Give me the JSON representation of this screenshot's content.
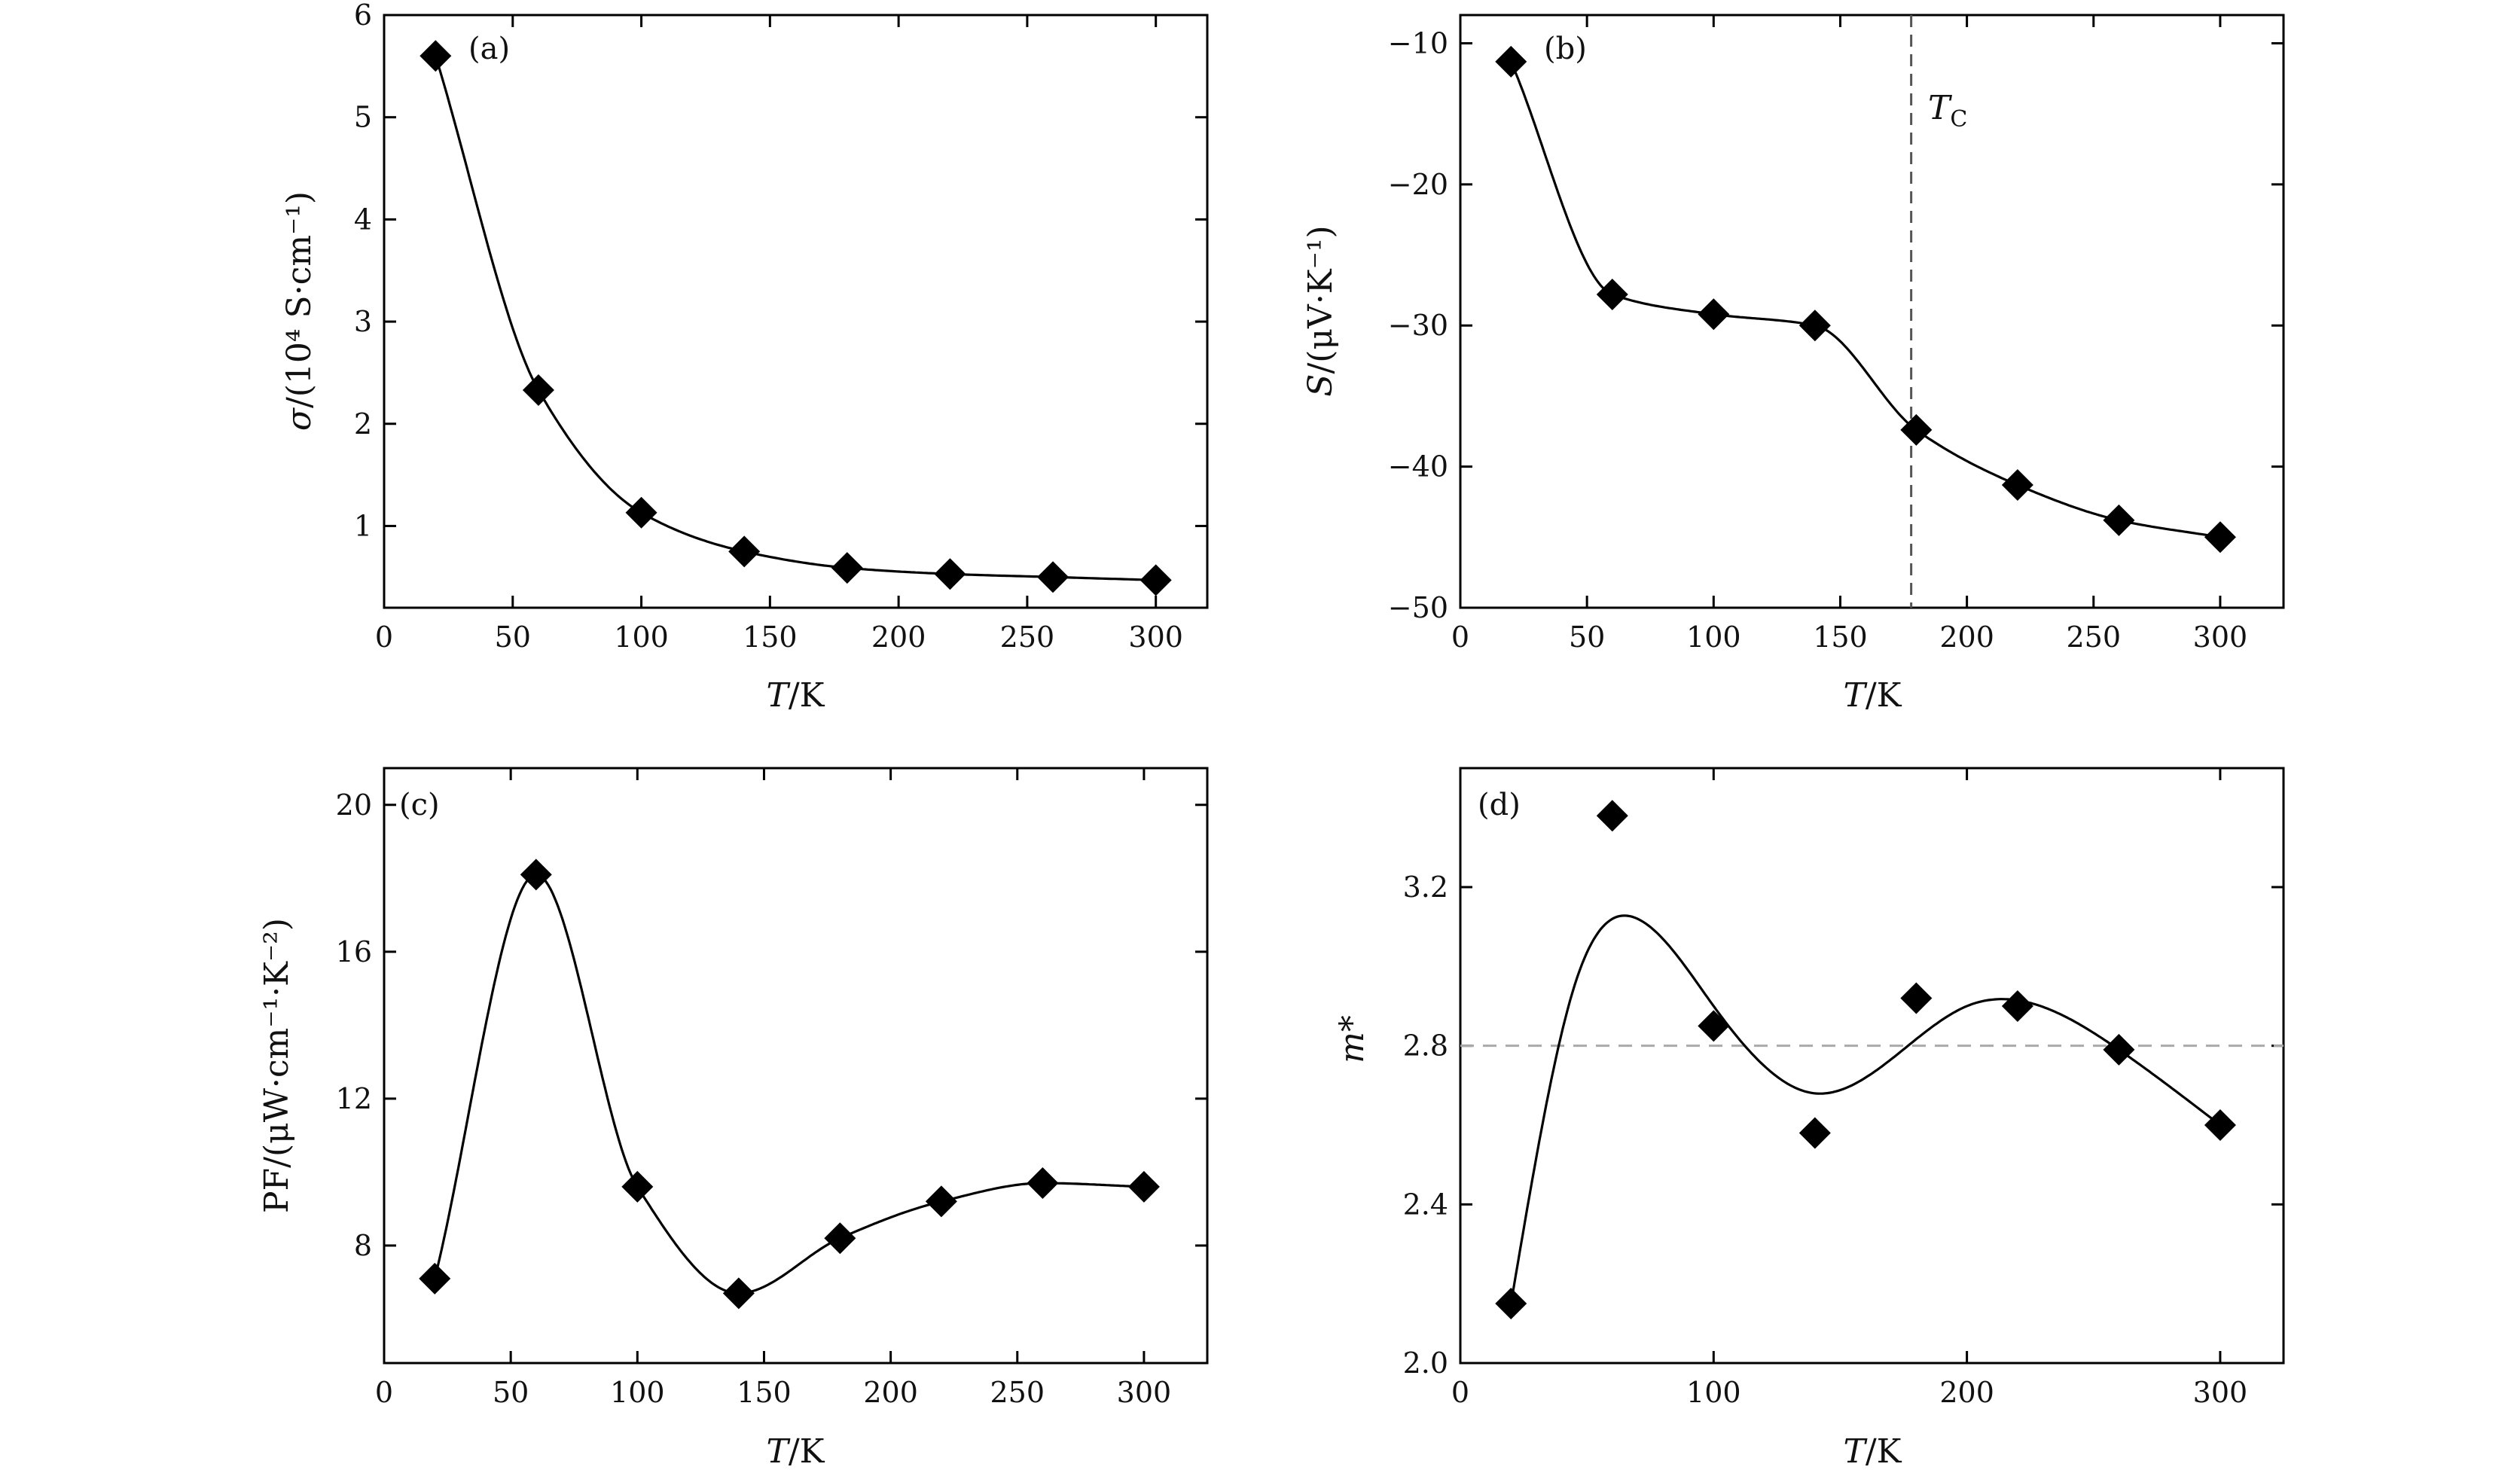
{
  "chart_data": [
    {
      "type": "scatter",
      "panel": "(a)",
      "xlabel_var": "T",
      "xlabel_unit": "/K",
      "ylabel_var": "σ",
      "ylabel_unit": "/(10⁴ S·cm⁻¹)",
      "xlim": [
        0,
        320
      ],
      "ylim": [
        0.2,
        6.0
      ],
      "xticks": [
        0,
        50,
        100,
        150,
        200,
        250,
        300
      ],
      "yticks": [
        1,
        2,
        3,
        4,
        5,
        6
      ],
      "x": [
        20,
        60,
        100,
        140,
        180,
        220,
        260,
        300
      ],
      "y": [
        5.6,
        2.33,
        1.13,
        0.75,
        0.59,
        0.53,
        0.5,
        0.47
      ],
      "fit_curve": true
    },
    {
      "type": "scatter",
      "panel": "(b)",
      "xlabel_var": "T",
      "xlabel_unit": "/K",
      "ylabel_var": "S",
      "ylabel_unit": "/(μV·K⁻¹)",
      "xlim": [
        0,
        325
      ],
      "ylim": [
        -50,
        -8
      ],
      "xticks": [
        0,
        50,
        100,
        150,
        200,
        250,
        300
      ],
      "yticks": [
        -10,
        -20,
        -30,
        -40,
        -50
      ],
      "ytick_labels": [
        "−10",
        "−20",
        "−30",
        "−40",
        "−50"
      ],
      "x": [
        20,
        60,
        100,
        140,
        180,
        220,
        260,
        300
      ],
      "y": [
        -11.3,
        -27.8,
        -29.2,
        -30.0,
        -37.4,
        -41.3,
        -43.8,
        -45.0
      ],
      "fit_curve": true,
      "vline": {
        "x": 178,
        "label_main": "T",
        "label_sub": "C"
      }
    },
    {
      "type": "scatter",
      "panel": "(c)",
      "xlabel_var": "T",
      "xlabel_unit": "/K",
      "ylabel_text": "PF/(μW·cm⁻¹·K⁻²)",
      "xlim": [
        0,
        325
      ],
      "ylim": [
        4.8,
        21.0
      ],
      "xticks": [
        0,
        50,
        100,
        150,
        200,
        250,
        300
      ],
      "yticks": [
        8,
        12,
        16,
        20
      ],
      "x": [
        20,
        60,
        100,
        140,
        180,
        220,
        260,
        300
      ],
      "y": [
        7.1,
        18.1,
        9.6,
        6.7,
        8.2,
        9.2,
        9.7,
        9.6
      ],
      "fit_curve": true
    },
    {
      "type": "scatter",
      "panel": "(d)",
      "xlabel_var": "T",
      "xlabel_unit": "/K",
      "ylabel_var": "m*",
      "xlim": [
        0,
        325
      ],
      "ylim": [
        2.0,
        3.5
      ],
      "xticks": [
        0,
        100,
        200,
        300
      ],
      "yticks": [
        2.0,
        2.4,
        2.8,
        3.2
      ],
      "ytick_labels": [
        "2.0",
        "2.4",
        "2.8",
        "3.2"
      ],
      "x": [
        20,
        60,
        100,
        140,
        180,
        220,
        260,
        300
      ],
      "y": [
        2.15,
        3.38,
        2.85,
        2.58,
        2.92,
        2.9,
        2.79,
        2.6
      ],
      "fit_curve": true,
      "hline": {
        "y": 2.8
      }
    }
  ]
}
